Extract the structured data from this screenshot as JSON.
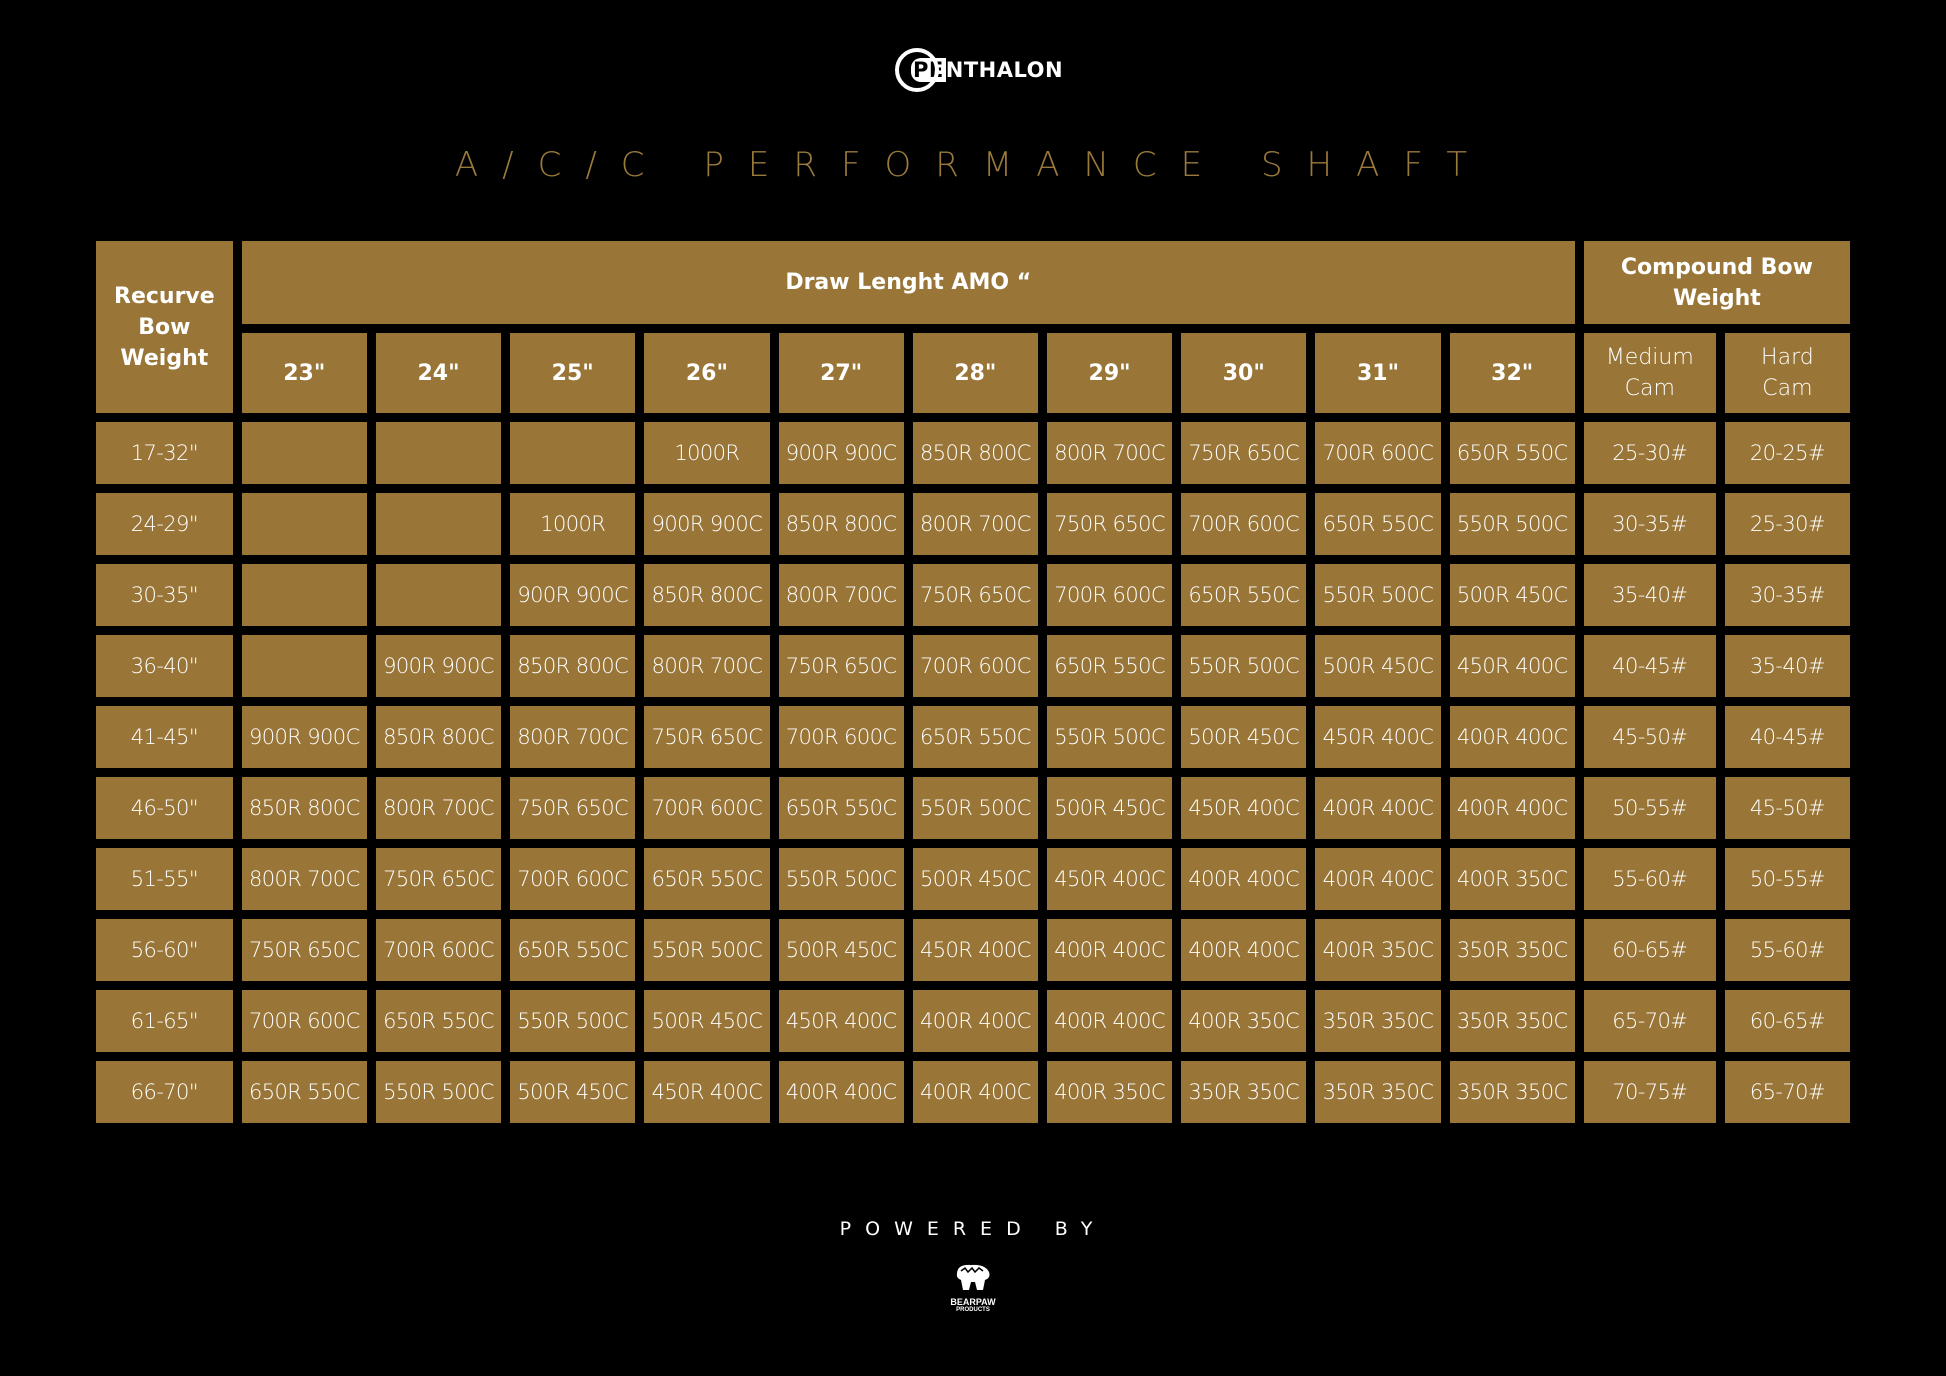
{
  "brand": {
    "logo_text": "PENTHALON"
  },
  "title": "A/C/C PERFORMANCE SHAFT",
  "table": {
    "recurve_header": "Recurve Bow Weight",
    "draw_header": "Draw Lenght AMO “",
    "compound_header": "Compound Bow Weight",
    "draw_lengths": [
      "23\"",
      "24\"",
      "25\"",
      "26\"",
      "27\"",
      "28\"",
      "29\"",
      "30\"",
      "31\"",
      "32\""
    ],
    "compound_cols": [
      "Medium Cam",
      "Hard Cam"
    ],
    "rows": [
      {
        "weight": "17-32\"",
        "cells": [
          "",
          "",
          "",
          "1000R",
          "900R 900C",
          "850R 800C",
          "800R 700C",
          "750R 650C",
          "700R 600C",
          "650R 550C"
        ],
        "medium": "25-30#",
        "hard": "20-25#"
      },
      {
        "weight": "24-29\"",
        "cells": [
          "",
          "",
          "1000R",
          "900R 900C",
          "850R 800C",
          "800R 700C",
          "750R 650C",
          "700R 600C",
          "650R 550C",
          "550R 500C"
        ],
        "medium": "30-35#",
        "hard": "25-30#"
      },
      {
        "weight": "30-35\"",
        "cells": [
          "",
          "",
          "900R 900C",
          "850R 800C",
          "800R 700C",
          "750R 650C",
          "700R 600C",
          "650R 550C",
          "550R 500C",
          "500R 450C"
        ],
        "medium": "35-40#",
        "hard": "30-35#"
      },
      {
        "weight": "36-40\"",
        "cells": [
          "",
          "900R 900C",
          "850R 800C",
          "800R 700C",
          "750R 650C",
          "700R 600C",
          "650R 550C",
          "550R 500C",
          "500R 450C",
          "450R 400C"
        ],
        "medium": "40-45#",
        "hard": "35-40#"
      },
      {
        "weight": "41-45\"",
        "cells": [
          "900R 900C",
          "850R 800C",
          "800R 700C",
          "750R 650C",
          "700R 600C",
          "650R 550C",
          "550R 500C",
          "500R 450C",
          "450R 400C",
          "400R 400C"
        ],
        "medium": "45-50#",
        "hard": "40-45#"
      },
      {
        "weight": "46-50\"",
        "cells": [
          "850R 800C",
          "800R 700C",
          "750R 650C",
          "700R 600C",
          "650R 550C",
          "550R 500C",
          "500R 450C",
          "450R 400C",
          "400R 400C",
          "400R 400C"
        ],
        "medium": "50-55#",
        "hard": "45-50#"
      },
      {
        "weight": "51-55\"",
        "cells": [
          "800R 700C",
          "750R 650C",
          "700R 600C",
          "650R 550C",
          "550R 500C",
          "500R 450C",
          "450R 400C",
          "400R 400C",
          "400R 400C",
          "400R 350C"
        ],
        "medium": "55-60#",
        "hard": "50-55#"
      },
      {
        "weight": "56-60\"",
        "cells": [
          "750R 650C",
          "700R 600C",
          "650R 550C",
          "550R 500C",
          "500R 450C",
          "450R 400C",
          "400R 400C",
          "400R 400C",
          "400R 350C",
          "350R 350C"
        ],
        "medium": "60-65#",
        "hard": "55-60#"
      },
      {
        "weight": "61-65\"",
        "cells": [
          "700R 600C",
          "650R 550C",
          "550R 500C",
          "500R 450C",
          "450R 400C",
          "400R 400C",
          "400R 400C",
          "400R 350C",
          "350R 350C",
          "350R 350C"
        ],
        "medium": "65-70#",
        "hard": "60-65#"
      },
      {
        "weight": "66-70\"",
        "cells": [
          "650R 550C",
          "550R 500C",
          "500R 450C",
          "450R 400C",
          "400R 400C",
          "400R 400C",
          "400R 350C",
          "350R 350C",
          "350R 350C",
          "350R 350C"
        ],
        "medium": "70-75#",
        "hard": "65-70#"
      }
    ]
  },
  "footer": {
    "powered_by": "POWERED BY",
    "partner_logo": "BEARPAW",
    "partner_sub": "PRODUCTS"
  },
  "colors": {
    "background": "#000000",
    "cell": "#997638",
    "title": "#9a7a3c",
    "text": "#ffffff"
  }
}
